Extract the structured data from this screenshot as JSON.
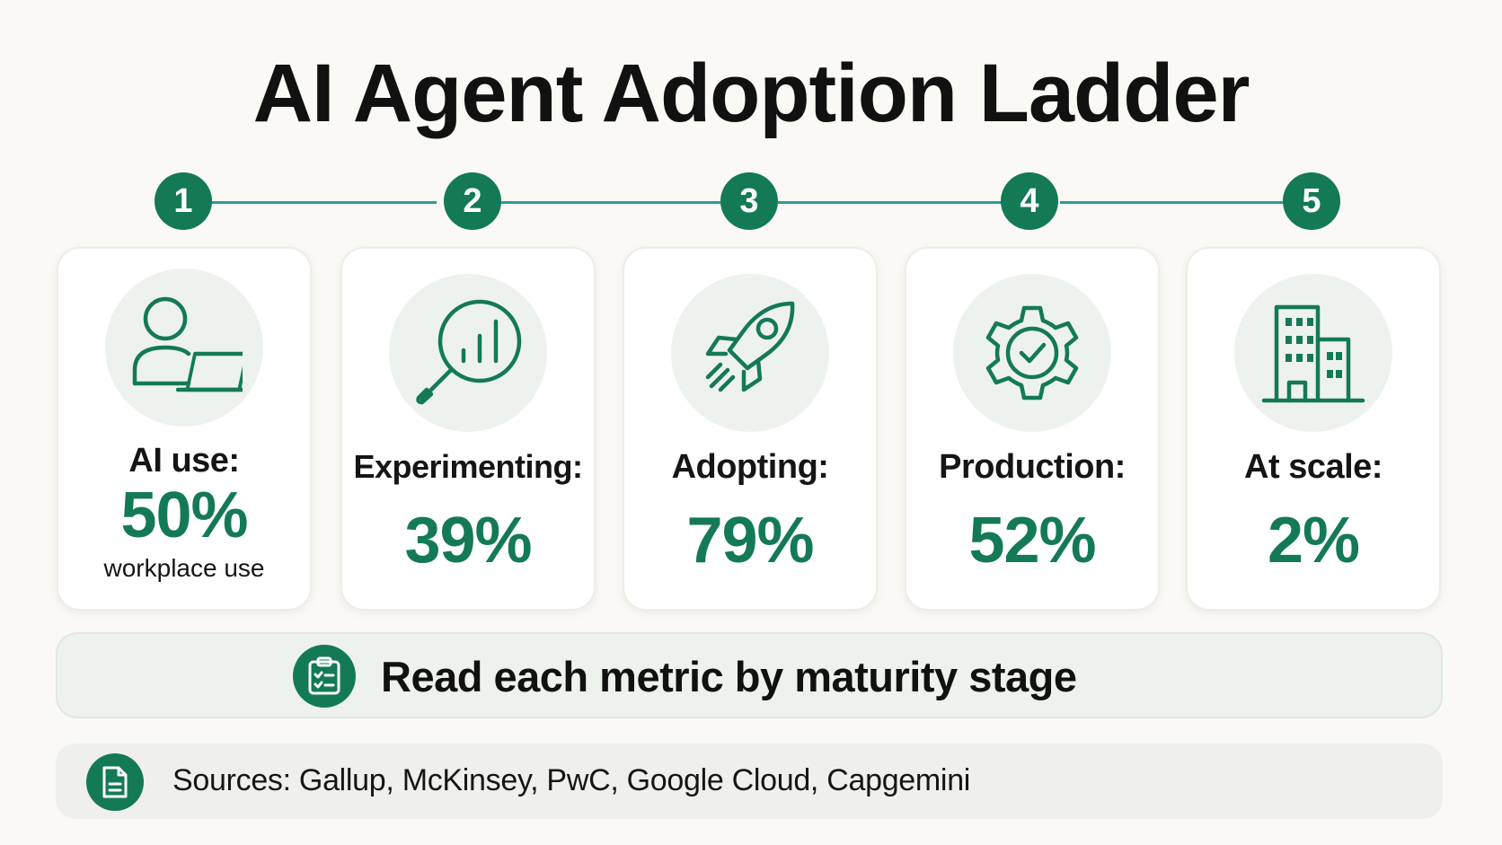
{
  "title": "AI Agent Adoption Ladder",
  "colors": {
    "accent": "#137a55",
    "timeline_line": "#2a9d95",
    "background": "#faf9f5",
    "icon_circle": "#eef2ee"
  },
  "steps": [
    {
      "number": "1",
      "icon": "person-laptop-icon",
      "label": "AI use:",
      "value": "50%",
      "sub": "workplace use"
    },
    {
      "number": "2",
      "icon": "magnifier-chart-icon",
      "label": "Experimenting:",
      "value": "39%"
    },
    {
      "number": "3",
      "icon": "rocket-icon",
      "label": "Adopting:",
      "value": "79%"
    },
    {
      "number": "4",
      "icon": "gear-check-icon",
      "label": "Production:",
      "value": "52%"
    },
    {
      "number": "5",
      "icon": "building-icon",
      "label": "At scale:",
      "value": "2%"
    }
  ],
  "banner": {
    "icon": "clipboard-icon",
    "text": "Read each metric by maturity stage"
  },
  "sources": {
    "icon": "document-icon",
    "text": "Sources: Gallup, McKinsey, PwC, Google Cloud, Capgemini"
  }
}
